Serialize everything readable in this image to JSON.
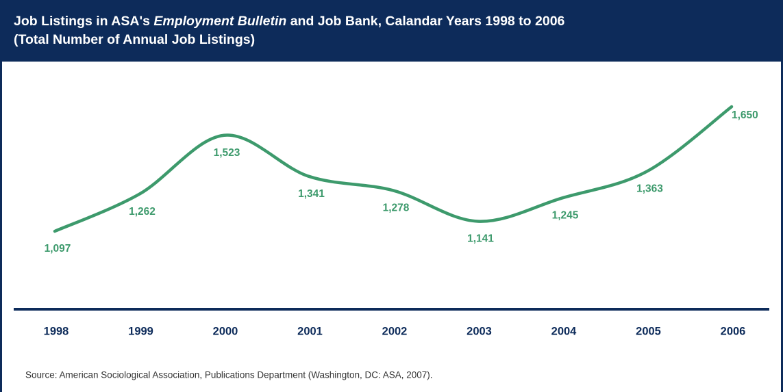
{
  "chart_data": {
    "type": "line",
    "title": [
      "Job Listings in ASA's ",
      "Employment Bulletin",
      " and Job Bank, Calandar Years 1998 to 2006"
    ],
    "subtitle": "(Total Number of Annual Job Listings)",
    "categories": [
      "1998",
      "1999",
      "2000",
      "2001",
      "2002",
      "2003",
      "2004",
      "2005",
      "2006"
    ],
    "values": [
      1097,
      1262,
      1523,
      1341,
      1278,
      1141,
      1245,
      1363,
      1650
    ],
    "value_labels": [
      "1,097",
      "1,262",
      "1,523",
      "1,341",
      "1,278",
      "1,141",
      "1,245",
      "1,363",
      "1,650"
    ],
    "color": "#3d9a6c",
    "source": "Source: American Sociological Association, Publications Department (Washington, DC: ASA, 2007)."
  }
}
